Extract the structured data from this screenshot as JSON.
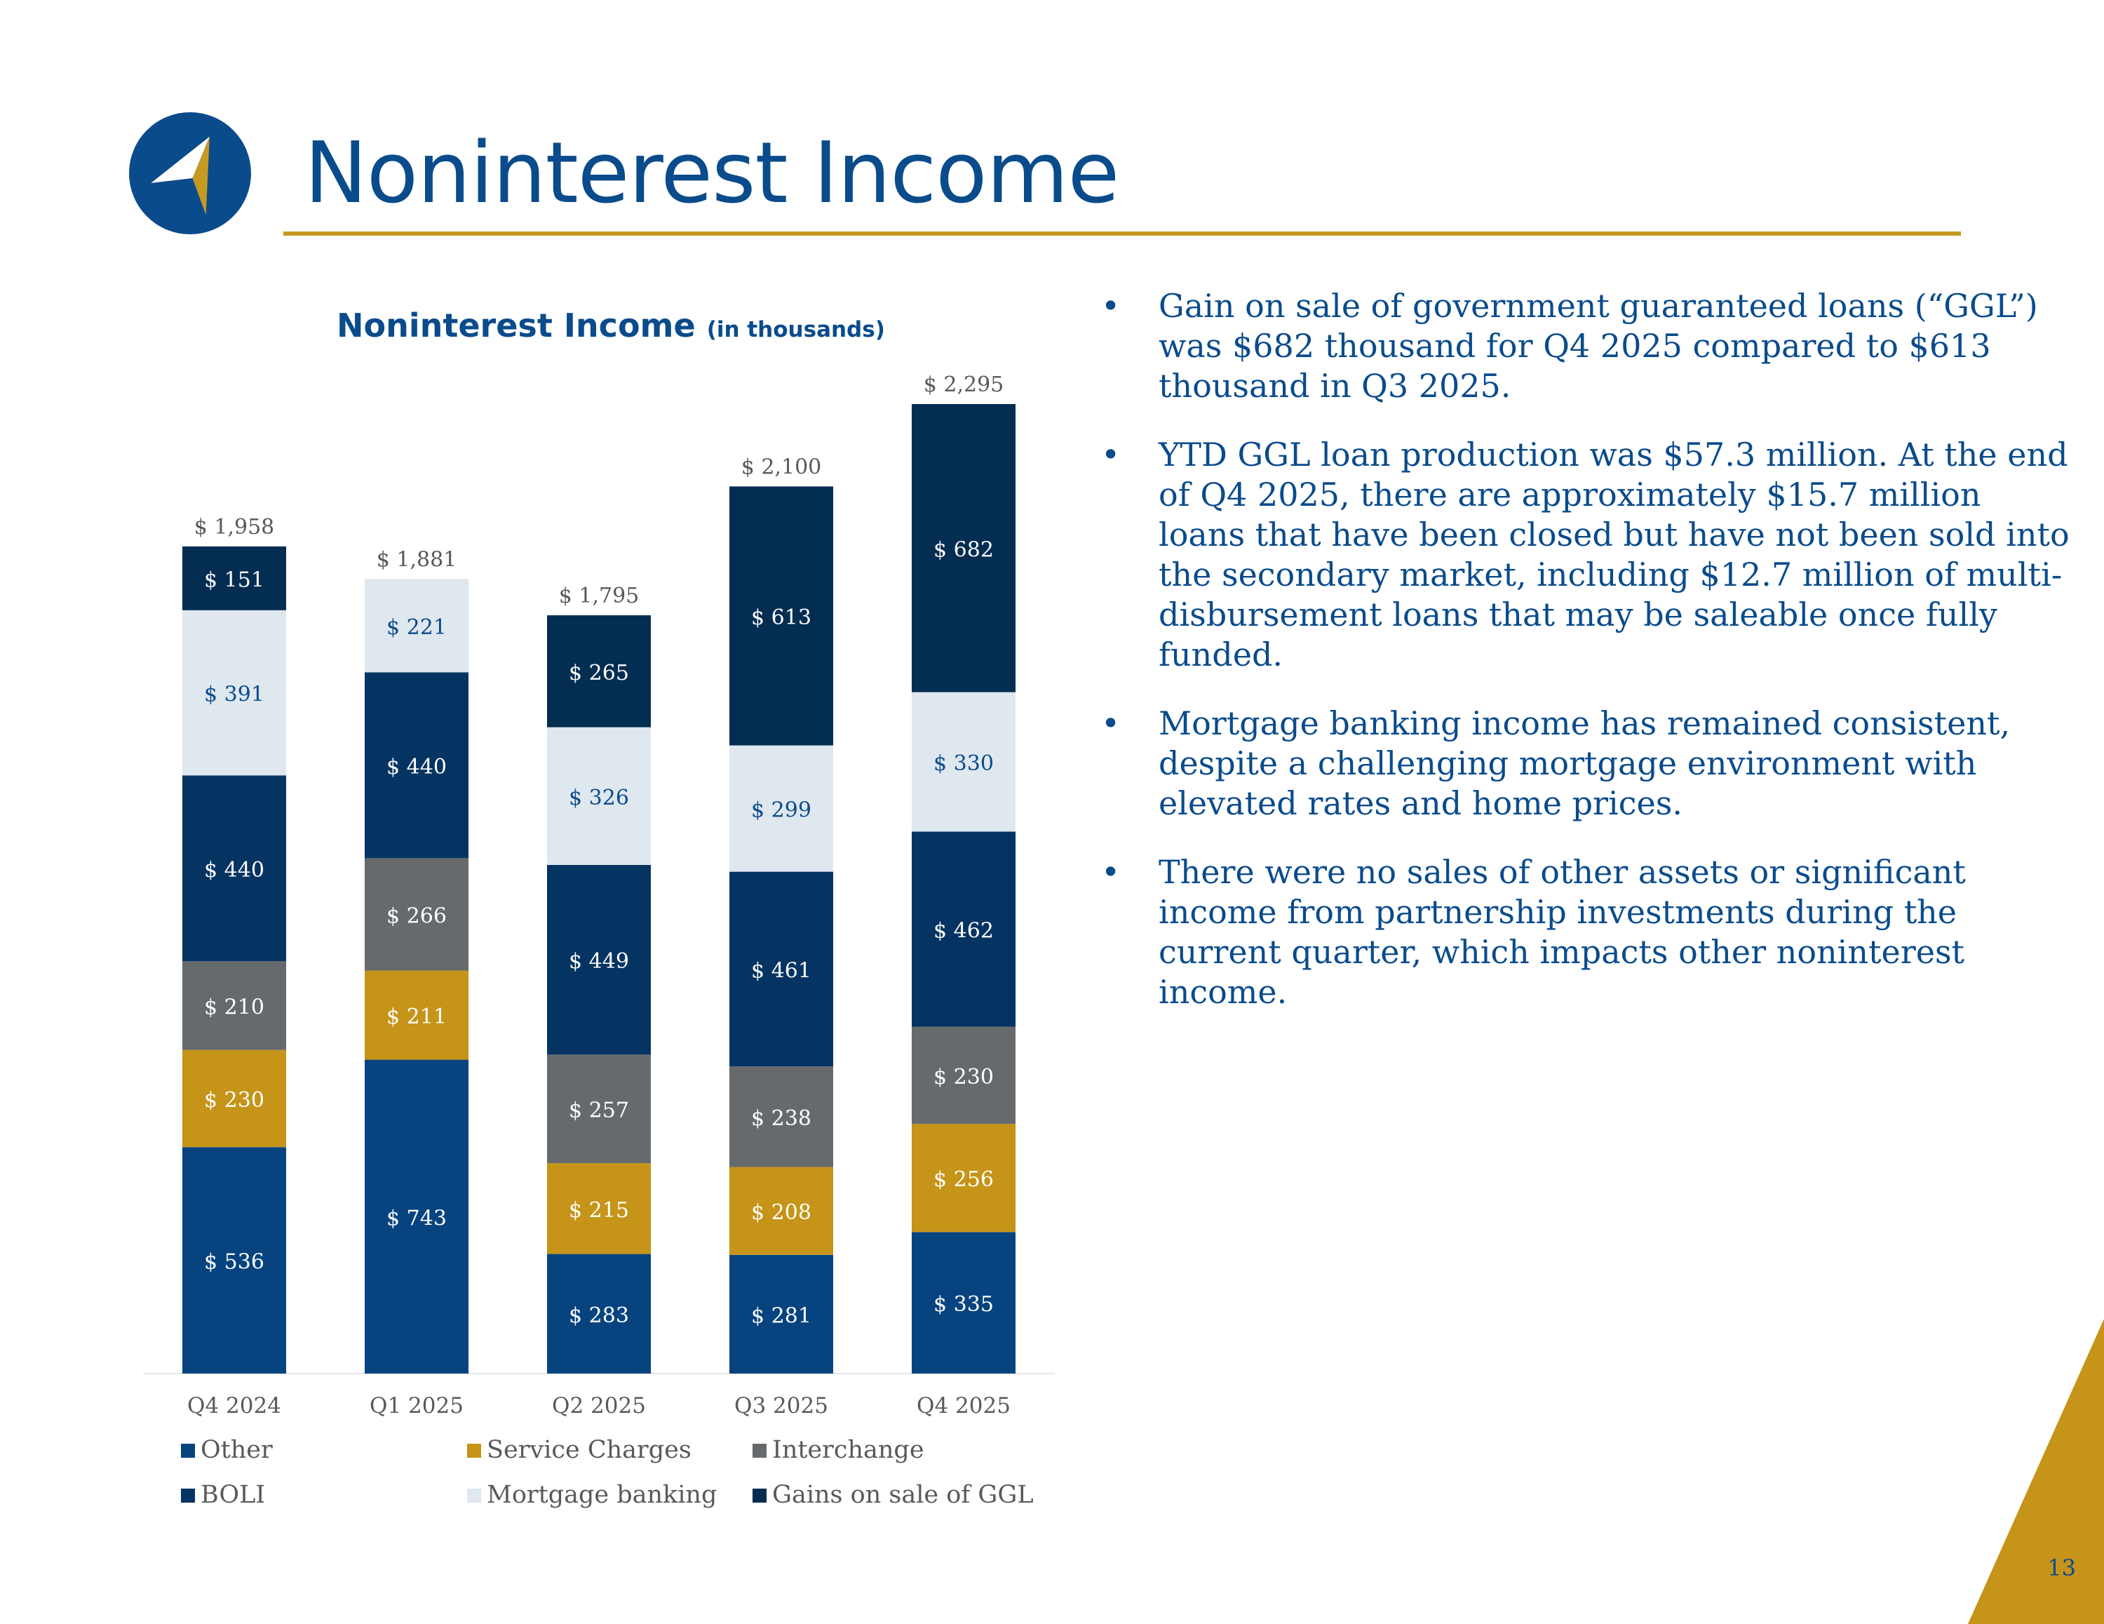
{
  "page": {
    "title": "Noninterest Income",
    "page_number": "13",
    "colors": {
      "brand_blue": "#0a4b8c",
      "accent_gold": "#c59a23"
    }
  },
  "logo": {
    "icon": "compass-arrow-logo-icon"
  },
  "chart_title": {
    "main": "Noninterest Income",
    "sub": "(in thousands)"
  },
  "chart_data": {
    "type": "bar",
    "stacked": true,
    "title": "Noninterest Income (in thousands)",
    "xlabel": "",
    "ylabel": "",
    "value_prefix": "$ ",
    "ylim": [
      0,
      2400
    ],
    "grid": false,
    "legend_position": "bottom",
    "categories": [
      "Q4 2024",
      "Q1 2025",
      "Q2 2025",
      "Q3 2025",
      "Q4 2025"
    ],
    "totals": [
      "$ 1,958",
      "$ 1,881",
      "$ 1,795",
      "$ 2,100",
      "$ 2,295"
    ],
    "series": [
      {
        "name": "Other",
        "color": "#07447f",
        "values": [
          536,
          743,
          283,
          281,
          335
        ]
      },
      {
        "name": "Service Charges",
        "color": "#c59418",
        "values": [
          230,
          211,
          215,
          208,
          256
        ]
      },
      {
        "name": "Interchange",
        "color": "#676a6d",
        "values": [
          210,
          266,
          257,
          238,
          230
        ]
      },
      {
        "name": "BOLI",
        "color": "#063462",
        "values": [
          440,
          440,
          449,
          461,
          462
        ]
      },
      {
        "name": "Mortgage banking",
        "color": "#dfe7ef",
        "values": [
          391,
          221,
          326,
          299,
          330
        ]
      },
      {
        "name": "Gains on sale of GGL",
        "color": "#042d52",
        "values": [
          151,
          0,
          265,
          613,
          682
        ]
      }
    ]
  },
  "bullets": [
    "Gain on sale of government guaranteed loans (“GGL”) was $682 thousand for Q4 2025 compared to $613 thousand in Q3 2025.",
    "YTD GGL loan production was $57.3 million.  At the end of Q4 2025, there are approximately $15.7 million loans that have been closed but have not been sold into the secondary market, including $12.7 million of multi-disbursement loans that may be saleable once fully funded.",
    "Mortgage banking income has remained consistent, despite a challenging mortgage environment with elevated rates and home prices.",
    "There were no sales of other assets or significant income from partnership investments during the current quarter, which impacts other noninterest income."
  ],
  "bullet_symbol": "•"
}
